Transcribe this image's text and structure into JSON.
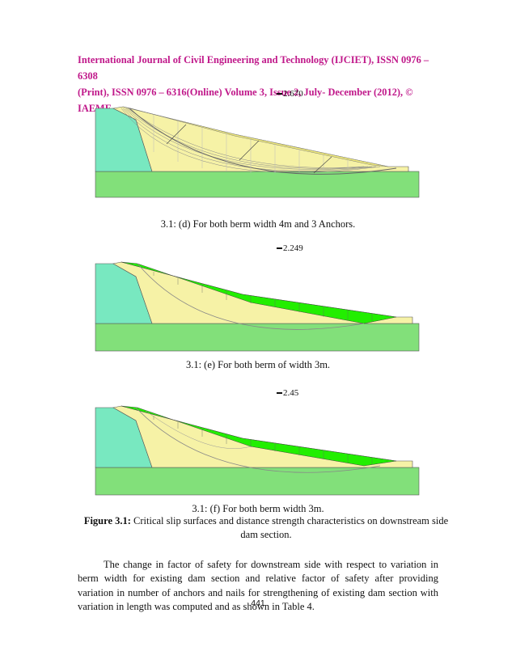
{
  "header": {
    "line1": "International Journal of Civil Engineering and Technology (IJCIET), ISSN 0976 – 6308",
    "line2": "(Print), ISSN 0976 – 6316(Online) Volume 3, Issue 2, July- December (2012), © IAEME"
  },
  "figures": [
    {
      "fos": "2.670",
      "caption": "3.1: (d) For both berm width 4m and 3 Anchors.",
      "slice_color": "#f2ec7a"
    },
    {
      "fos": "2.249",
      "caption": "3.1: (e) For both berm of width 3m.",
      "slice_color": "#22ee00"
    },
    {
      "fos": "2.45",
      "caption": "3.1: (f) For both berm width 3m.",
      "slice_color": "#22ee00"
    }
  ],
  "figure_caption": {
    "label": "Figure 3.1:",
    "text": " Critical slip surfaces and distance strength characteristics on downstream side dam section."
  },
  "paragraph": "The change in factor of safety for downstream side with respect to variation in berm width for existing dam section and relative factor of safety after providing variation in number of anchors and nails for strengthening of existing dam section with variation in length was computed and as shown in Table 4.",
  "page_number": "441",
  "colors": {
    "header": "#c0188a",
    "foundation": "#82e07a",
    "core": "#78e8c0",
    "shell": "#f6f2a6",
    "slice_yellow": "#f2ec7a",
    "slice_green": "#22ee00"
  }
}
